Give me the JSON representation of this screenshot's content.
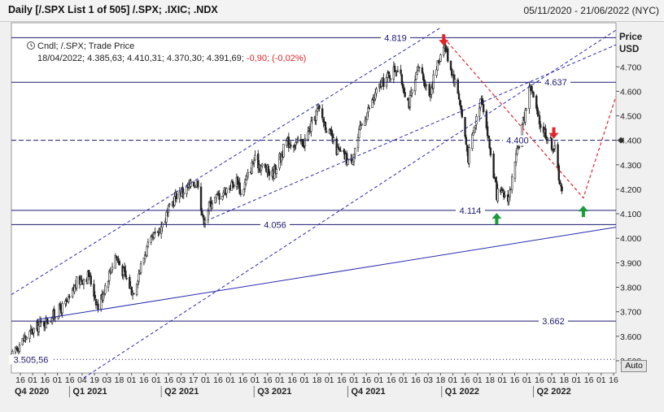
{
  "window": {
    "title": "Daily [/.SPX List 1 of 505] /.SPX; .IXIC; .NDX",
    "date_range": "05/11/2020 - 21/06/2022 (NYC)"
  },
  "legend": {
    "series_info": "Cndl; /.SPX; Trade Price",
    "ohlc_prefix": "18/04/2022; 4.385,63; 4.410,31; 4.370,30; 4.391,69;",
    "change": "-0,90; (-0,02%)"
  },
  "axis": {
    "price_label": "Price",
    "currency_label": "USD",
    "auto_button": "Auto"
  },
  "colors": {
    "candle": "#222222",
    "level_line": "#1a1a6e",
    "channel_line": "#2a2ab0",
    "projection": "#e0252a",
    "arrow_down": "#e0252a",
    "arrow_up": "#1a9a3a",
    "change_text": "#e0252a"
  },
  "chart_data": {
    "type": "candlestick",
    "series_name": "/.SPX",
    "x_range": [
      "2020-11-05",
      "2022-06-21"
    ],
    "ylim": [
      3450,
      4880
    ],
    "y_ticks": [
      "3.500",
      "3.600",
      "3.700",
      "3.800",
      "3.900",
      "4.000",
      "4.100",
      "4.200",
      "4.300",
      "4.400",
      "4.500",
      "4.600",
      "4.700"
    ],
    "y_tick_values": [
      3500,
      3600,
      3700,
      3800,
      3900,
      4000,
      4100,
      4200,
      4300,
      4400,
      4500,
      4600,
      4700
    ],
    "x_tick_labels": [
      "16",
      "01",
      "16",
      "01",
      "16",
      "04",
      "19",
      "03",
      "18",
      "01",
      "16",
      "01",
      "16",
      "03",
      "17",
      "01",
      "16",
      "01",
      "16",
      "01",
      "16",
      "01",
      "16",
      "01",
      "18",
      "01",
      "16",
      "01",
      "16",
      "01",
      "16",
      "01",
      "16",
      "03",
      "18",
      "01",
      "16",
      "01",
      "18",
      "01",
      "16",
      "01",
      "16",
      "01",
      "18",
      "01",
      "16",
      "01",
      "16"
    ],
    "quarter_labels": [
      "Q4 2020",
      "Q1 2021",
      "Q2 2021",
      "Q3 2021",
      "Q4 2021",
      "Q1 2022",
      "Q2 2022"
    ],
    "horizontal_levels": [
      {
        "value": 4819,
        "label": "4.819",
        "style": "solid"
      },
      {
        "value": 4637,
        "label": "4.637",
        "style": "solid"
      },
      {
        "value": 4400,
        "label": "4.400",
        "style": "dashed"
      },
      {
        "value": 4114,
        "label": "4.114",
        "style": "solid"
      },
      {
        "value": 4056,
        "label": "4.056",
        "style": "solid"
      },
      {
        "value": 3662,
        "label": "3.662",
        "style": "solid"
      },
      {
        "value": 3505.56,
        "label": "3.505,56",
        "style": "dotted"
      }
    ],
    "last_value": 4400,
    "anchors": [
      [
        "2020-11-05",
        3510
      ],
      [
        "2020-11-09",
        3550
      ],
      [
        "2020-11-20",
        3600
      ],
      [
        "2020-12-01",
        3640
      ],
      [
        "2020-12-15",
        3680
      ],
      [
        "2020-12-31",
        3740
      ],
      [
        "2021-01-08",
        3820
      ],
      [
        "2021-01-20",
        3850
      ],
      [
        "2021-01-29",
        3720
      ],
      [
        "2021-02-15",
        3930
      ],
      [
        "2021-03-04",
        3780
      ],
      [
        "2021-03-17",
        3950
      ],
      [
        "2021-04-01",
        4050
      ],
      [
        "2021-04-16",
        4180
      ],
      [
        "2021-05-07",
        4230
      ],
      [
        "2021-05-12",
        4070
      ],
      [
        "2021-05-20",
        4150
      ],
      [
        "2021-06-15",
        4240
      ],
      [
        "2021-06-18",
        4180
      ],
      [
        "2021-07-01",
        4320
      ],
      [
        "2021-07-19",
        4260
      ],
      [
        "2021-08-02",
        4390
      ],
      [
        "2021-08-19",
        4390
      ],
      [
        "2021-09-02",
        4530
      ],
      [
        "2021-09-20",
        4360
      ],
      [
        "2021-10-04",
        4310
      ],
      [
        "2021-10-15",
        4470
      ],
      [
        "2021-11-01",
        4620
      ],
      [
        "2021-11-18",
        4700
      ],
      [
        "2021-11-30",
        4550
      ],
      [
        "2021-12-10",
        4700
      ],
      [
        "2021-12-20",
        4590
      ],
      [
        "2022-01-03",
        4800
      ],
      [
        "2022-01-18",
        4580
      ],
      [
        "2022-01-27",
        4330
      ],
      [
        "2022-02-09",
        4590
      ],
      [
        "2022-02-24",
        4180
      ],
      [
        "2022-03-08",
        4170
      ],
      [
        "2022-03-29",
        4630
      ],
      [
        "2022-04-06",
        4480
      ],
      [
        "2022-04-18",
        4392
      ],
      [
        "2022-04-22",
        4360
      ],
      [
        "2022-04-29",
        4180
      ]
    ],
    "trend_lines": [
      {
        "name": "upper-channel",
        "style": "dashed",
        "points": [
          [
            "2020-11-05",
            3770
          ],
          [
            "2021-12-31",
            4860
          ]
        ]
      },
      {
        "name": "lower-channel",
        "style": "dashed",
        "points": [
          [
            "2021-01-15",
            3430
          ],
          [
            "2022-06-21",
            4850
          ]
        ]
      },
      {
        "name": "wedge-support",
        "style": "dashed",
        "points": [
          [
            "2021-05-20",
            4080
          ],
          [
            "2022-06-21",
            4790
          ]
        ]
      },
      {
        "name": "long-support",
        "style": "solid",
        "points": [
          [
            "2020-12-01",
            3668
          ],
          [
            "2022-06-21",
            4045
          ]
        ]
      }
    ],
    "projection": [
      [
        "2022-01-03",
        4819
      ],
      [
        "2022-05-20",
        4165
      ],
      [
        "2022-06-21",
        4580
      ]
    ],
    "arrows": [
      {
        "date": "2022-01-03",
        "value": 4810,
        "direction": "down"
      },
      {
        "date": "2022-04-21",
        "value": 4430,
        "direction": "down"
      },
      {
        "date": "2022-02-24",
        "value": 4080,
        "direction": "up"
      },
      {
        "date": "2022-05-20",
        "value": 4110,
        "direction": "up"
      }
    ]
  }
}
